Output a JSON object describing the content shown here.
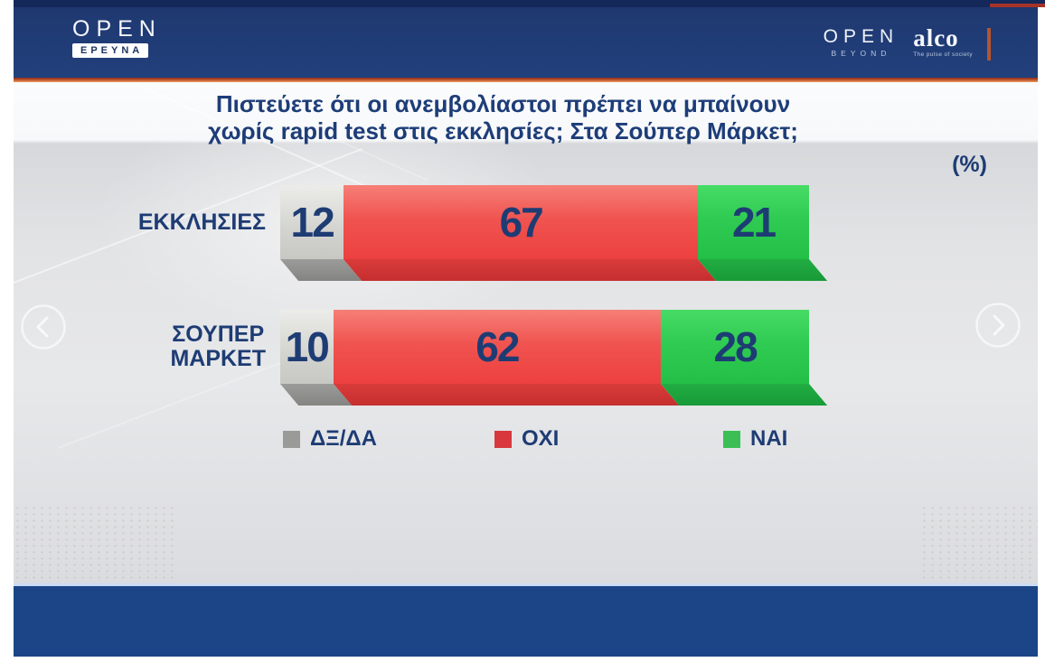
{
  "header": {
    "open_logo": "OPEN",
    "open_logo_sub": "ΕΡΕΥΝΑ",
    "open_beyond_main": "OPEN",
    "open_beyond_sub": "BEYOND",
    "alco_logo": "alco",
    "alco_tagline": "The pulse of society"
  },
  "title": {
    "line1": "Πιστεύετε ότι οι ανεμβολίαστοι πρέπει να μπαίνουν",
    "line2": "χωρίς rapid test στις εκκλησίες; Στα Σούπερ Μάρκετ;"
  },
  "unit_label": "(%)",
  "chart_data": {
    "type": "bar",
    "orientation": "horizontal",
    "stacked": true,
    "unit": "%",
    "title": "Πιστεύετε ότι οι ανεμβολίαστοι πρέπει να μπαίνουν χωρίς rapid test στις εκκλησίες; Στα Σούπερ Μάρκετ;",
    "categories": [
      "ΕΚΚΛΗΣΙΕΣ",
      "ΣΟΥΠΕΡ ΜΑΡΚΕΤ"
    ],
    "series": [
      {
        "name": "ΔΞ/ΔΑ",
        "color": "#9a9a98",
        "values": [
          12,
          10
        ]
      },
      {
        "name": "ΟΧΙ",
        "color": "#ec4040",
        "values": [
          67,
          62
        ]
      },
      {
        "name": "ΝΑΙ",
        "color": "#2ec552",
        "values": [
          21,
          28
        ]
      }
    ],
    "value_labels_shown": true,
    "legend_position": "bottom",
    "xlim": [
      0,
      100
    ]
  },
  "colors": {
    "header_navy": "#203a72",
    "footer_navy": "#1b4586",
    "accent_line_red": "#c85c31",
    "text_navy": "#1e3c74",
    "legend_grey": "#9a9a98",
    "legend_red": "#d8383d",
    "legend_green": "#3bbf55"
  }
}
